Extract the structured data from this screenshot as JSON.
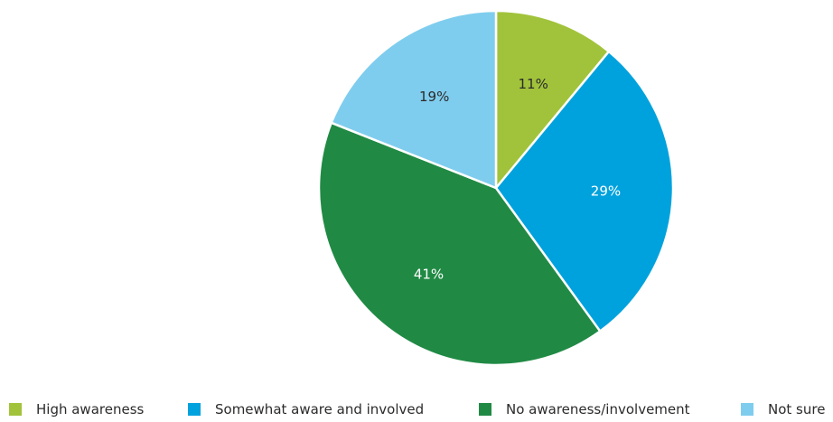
{
  "colors": {
    "high_awareness": "#a1c33b",
    "somewhat_aware": "#00a2dd",
    "no_awareness": "#208a44",
    "not_sure": "#7fcdee",
    "label_dark": "#2b2b2b",
    "label_light": "#ffffff",
    "background": "#ffffff"
  },
  "chart_data": {
    "type": "pie",
    "title": "",
    "start_angle_deg": 0,
    "direction": "clockwise",
    "legend_position": "bottom",
    "categories": [
      "High awareness",
      "Somewhat aware and involved",
      "No awareness/involvement",
      "Not sure"
    ],
    "values": [
      11,
      29,
      41,
      19
    ],
    "labels": [
      "11%",
      "29%",
      "41%",
      "19%"
    ],
    "colors": [
      "#a1c33b",
      "#00a2dd",
      "#208a44",
      "#7fcdee"
    ],
    "label_colors": [
      "#2b2b2b",
      "#ffffff",
      "#ffffff",
      "#2b2b2b"
    ]
  },
  "legend": [
    {
      "label": "High awareness",
      "color": "#a1c33b"
    },
    {
      "label": "Somewhat aware and involved",
      "color": "#00a2dd"
    },
    {
      "label": "No awareness/involvement",
      "color": "#208a44"
    },
    {
      "label": "Not sure",
      "color": "#7fcdee"
    }
  ]
}
